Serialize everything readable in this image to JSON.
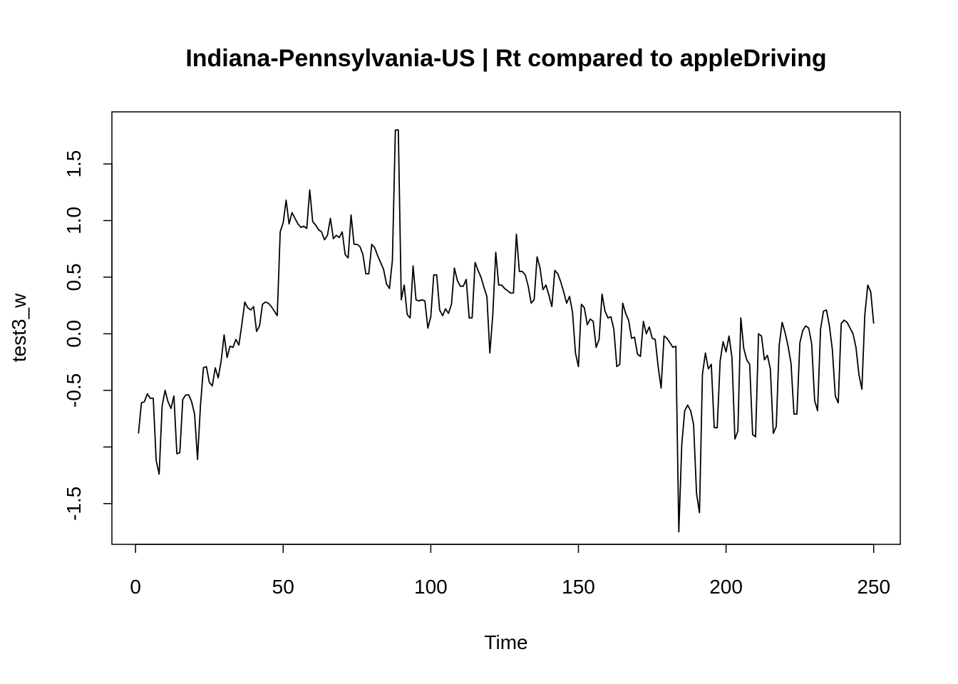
{
  "chart_data": {
    "type": "line",
    "title": "Indiana-Pennsylvania-US | Rt compared to appleDriving",
    "xlabel": "Time",
    "ylabel": "test3_w",
    "xlim": [
      -8,
      259
    ],
    "ylim": [
      -1.86,
      1.96
    ],
    "x_ticks": [
      0,
      50,
      100,
      150,
      200,
      250
    ],
    "x_tick_labels": [
      "0",
      "50",
      "100",
      "150",
      "200",
      "250"
    ],
    "y_ticks": [
      -1.5,
      -1.0,
      -0.5,
      0.0,
      0.5,
      1.0,
      1.5
    ],
    "y_tick_labels": [
      "-1.5",
      "",
      "-0.5",
      "0.0",
      "0.5",
      "1.0",
      "1.5"
    ],
    "grid": false,
    "legend": "none",
    "line_color": "#000000",
    "series": [
      {
        "x_start": 1,
        "values": [
          -0.88,
          -0.61,
          -0.6,
          -0.53,
          -0.57,
          -0.57,
          -1.12,
          -1.24,
          -0.64,
          -0.5,
          -0.6,
          -0.66,
          -0.55,
          -1.06,
          -1.05,
          -0.58,
          -0.54,
          -0.54,
          -0.6,
          -0.71,
          -1.11,
          -0.63,
          -0.3,
          -0.29,
          -0.43,
          -0.46,
          -0.3,
          -0.39,
          -0.24,
          -0.01,
          -0.21,
          -0.11,
          -0.12,
          -0.05,
          -0.1,
          0.08,
          0.28,
          0.23,
          0.21,
          0.24,
          0.02,
          0.07,
          0.26,
          0.28,
          0.27,
          0.24,
          0.2,
          0.16,
          0.9,
          0.98,
          1.18,
          0.97,
          1.07,
          1.02,
          0.97,
          0.94,
          0.95,
          0.93,
          1.27,
          0.99,
          0.96,
          0.92,
          0.9,
          0.83,
          0.87,
          1.02,
          0.84,
          0.87,
          0.85,
          0.9,
          0.7,
          0.67,
          1.05,
          0.79,
          0.79,
          0.77,
          0.7,
          0.53,
          0.53,
          0.79,
          0.76,
          0.69,
          0.63,
          0.57,
          0.44,
          0.4,
          0.65,
          1.8,
          1.8,
          0.3,
          0.43,
          0.17,
          0.14,
          0.6,
          0.3,
          0.29,
          0.3,
          0.29,
          0.05,
          0.15,
          0.52,
          0.52,
          0.21,
          0.16,
          0.22,
          0.18,
          0.26,
          0.58,
          0.47,
          0.42,
          0.42,
          0.48,
          0.14,
          0.14,
          0.63,
          0.56,
          0.5,
          0.41,
          0.33,
          -0.17,
          0.17,
          0.72,
          0.43,
          0.43,
          0.4,
          0.38,
          0.36,
          0.36,
          0.88,
          0.55,
          0.55,
          0.52,
          0.42,
          0.27,
          0.3,
          0.68,
          0.58,
          0.39,
          0.43,
          0.34,
          0.24,
          0.56,
          0.53,
          0.46,
          0.37,
          0.27,
          0.33,
          0.19,
          -0.17,
          -0.29,
          0.26,
          0.23,
          0.08,
          0.13,
          0.11,
          -0.12,
          -0.05,
          0.35,
          0.2,
          0.14,
          0.15,
          0.04,
          -0.29,
          -0.27,
          0.27,
          0.18,
          0.12,
          -0.04,
          -0.03,
          -0.18,
          -0.2,
          0.11,
          0.0,
          0.06,
          -0.04,
          -0.05,
          -0.29,
          -0.48,
          -0.02,
          -0.04,
          -0.08,
          -0.12,
          -0.11,
          -1.75,
          -0.98,
          -0.68,
          -0.63,
          -0.68,
          -0.8,
          -1.41,
          -1.58,
          -0.36,
          -0.17,
          -0.31,
          -0.27,
          -0.83,
          -0.83,
          -0.24,
          -0.07,
          -0.16,
          -0.02,
          -0.21,
          -0.93,
          -0.86,
          0.14,
          -0.13,
          -0.23,
          -0.27,
          -0.89,
          -0.91,
          0.0,
          -0.02,
          -0.23,
          -0.19,
          -0.31,
          -0.88,
          -0.82,
          -0.1,
          0.1,
          0.01,
          -0.11,
          -0.26,
          -0.71,
          -0.71,
          -0.08,
          0.03,
          0.07,
          0.05,
          -0.09,
          -0.59,
          -0.68,
          0.04,
          0.2,
          0.21,
          0.07,
          -0.14,
          -0.55,
          -0.61,
          0.09,
          0.12,
          0.1,
          0.05,
          0.0,
          -0.12,
          -0.36,
          -0.49,
          0.17,
          0.43,
          0.37,
          0.09
        ]
      }
    ]
  }
}
